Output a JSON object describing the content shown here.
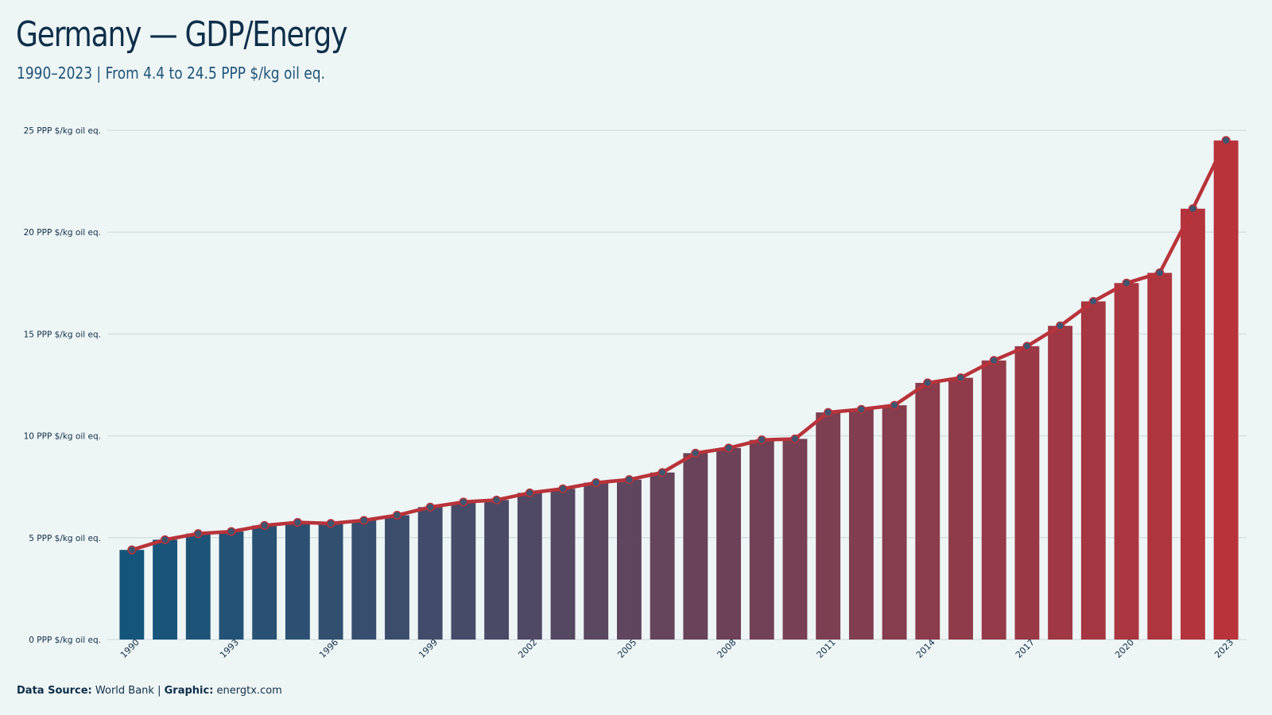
{
  "header": {
    "title": "Germany — GDP/Energy",
    "subtitle": "1990–2023 | From 4.4 to 24.5 PPP $/kg oil eq."
  },
  "footer": {
    "source_label": "Data Source:",
    "source_value": "World Bank",
    "separator": "|",
    "graphic_label": "Graphic:",
    "graphic_value": "energtx.com"
  },
  "colors": {
    "background": "#eef5f5",
    "gridline": "#d5e1e3",
    "bar_start": "#14557c",
    "bar_end": "#b8333a",
    "line": "#b8333a",
    "marker_fill": "#3e5670",
    "text": "#0d2f4a"
  },
  "chart_data": {
    "type": "bar",
    "overlay": "line with markers",
    "title": "Germany — GDP/Energy",
    "subtitle": "1990–2023 | From 4.4 to 24.5 PPP $/kg oil eq.",
    "xlabel": "",
    "ylabel": "",
    "y_unit_suffix": " PPP $/kg oil eq.",
    "ylim": [
      0,
      25
    ],
    "yticks": [
      0,
      5,
      10,
      15,
      20,
      25
    ],
    "ytick_labels": [
      "0 PPP $/kg oil eq.",
      "5 PPP $/kg oil eq.",
      "10 PPP $/kg oil eq.",
      "15 PPP $/kg oil eq.",
      "20 PPP $/kg oil eq.",
      "25 PPP $/kg oil eq."
    ],
    "xtick_labels": [
      "1990",
      "1993",
      "1996",
      "1999",
      "2002",
      "2005",
      "2008",
      "2011",
      "2014",
      "2017",
      "2020",
      "2023"
    ],
    "grid": true,
    "legend": "none",
    "categories": [
      1990,
      1991,
      1992,
      1993,
      1994,
      1995,
      1996,
      1997,
      1998,
      1999,
      2000,
      2001,
      2002,
      2003,
      2004,
      2005,
      2006,
      2007,
      2008,
      2009,
      2010,
      2011,
      2012,
      2013,
      2014,
      2015,
      2016,
      2017,
      2018,
      2019,
      2020,
      2021,
      2022,
      2023
    ],
    "values": [
      4.4,
      4.9,
      5.2,
      5.3,
      5.6,
      5.75,
      5.7,
      5.85,
      6.1,
      6.5,
      6.75,
      6.85,
      7.2,
      7.4,
      7.7,
      7.85,
      8.2,
      9.15,
      9.4,
      9.8,
      9.85,
      11.15,
      11.3,
      11.5,
      12.6,
      12.85,
      13.7,
      14.4,
      15.4,
      16.6,
      17.5,
      18.0,
      21.15,
      24.5
    ]
  }
}
